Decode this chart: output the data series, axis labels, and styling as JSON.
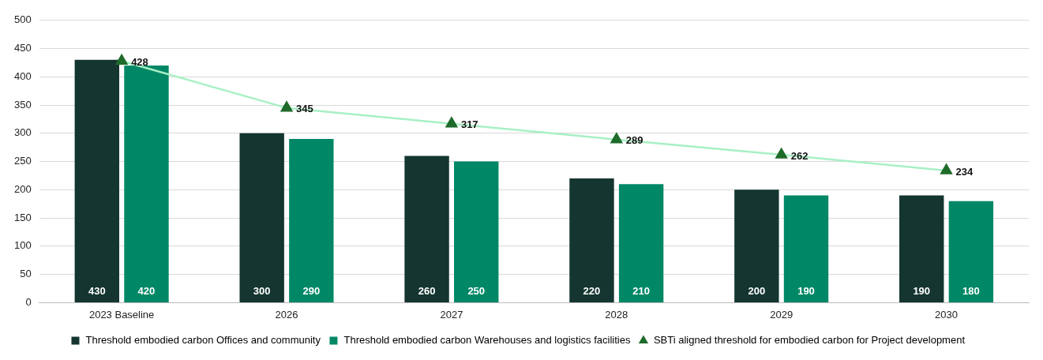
{
  "chart_data": {
    "type": "bar",
    "categories": [
      "2023 Baseline",
      "2026",
      "2027",
      "2028",
      "2029",
      "2030"
    ],
    "series": [
      {
        "name": "Threshold embodied carbon Offices and community",
        "color": "#143530",
        "values": [
          430,
          300,
          260,
          220,
          200,
          190
        ]
      },
      {
        "name": "Threshold embodied carbon Warehouses and logistics facilities",
        "color": "#008866",
        "values": [
          420,
          290,
          250,
          210,
          190,
          180
        ]
      },
      {
        "name": "SBTi aligned threshold for embodied carbon for Project development",
        "type": "line",
        "color": "#a8f0c4",
        "marker": "triangle",
        "values": [
          428,
          345,
          317,
          289,
          262,
          234
        ]
      }
    ],
    "ylim": [
      0,
      500
    ],
    "yticks": [
      0,
      50,
      100,
      150,
      200,
      250,
      300,
      350,
      400,
      450,
      500
    ],
    "grid": "y",
    "legend": "bottom",
    "data_labels": true
  }
}
